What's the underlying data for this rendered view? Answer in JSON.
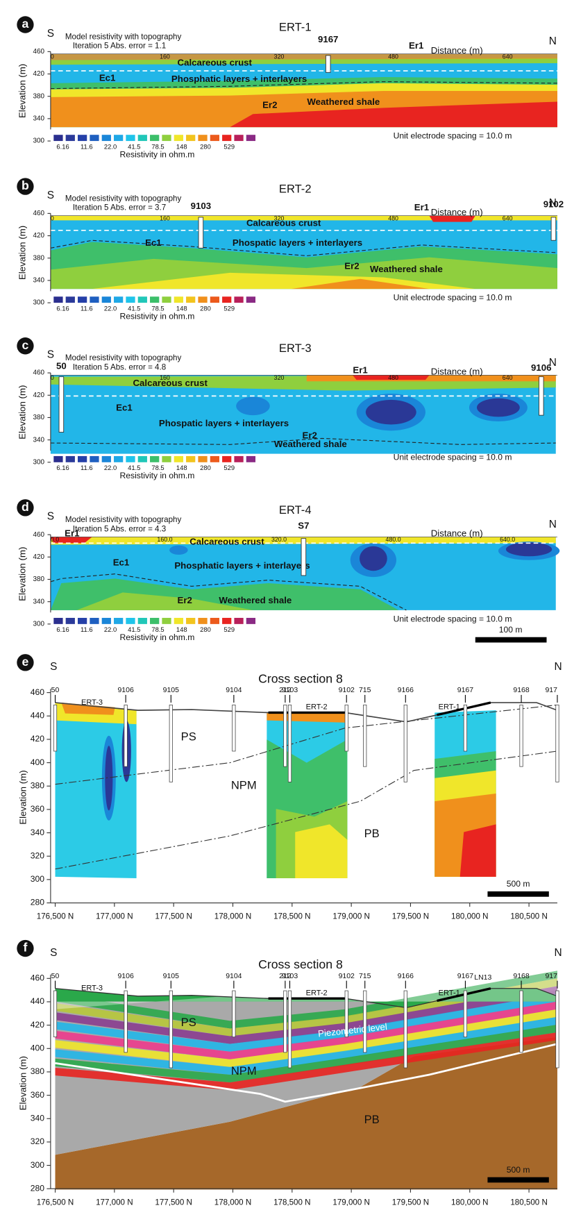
{
  "panels": [
    {
      "letter": "a",
      "title": "ERT-1",
      "header": "Model resistivity with topography",
      "iteration": "Iteration 5 Abs. error = 1.1",
      "left": "S",
      "right": "N",
      "distance_label": "Distance (m)",
      "distance_ticks": [
        "0",
        "160",
        "320",
        "480",
        "640"
      ],
      "y_label": "Elevation (m)",
      "y_ticks": [
        460,
        420,
        380,
        340,
        300
      ],
      "legend_values": [
        "6.16",
        "11.6",
        "22.0",
        "41.5",
        "78.5",
        "148",
        "280",
        "529"
      ],
      "legend_title": "Resistivity in ohm.m",
      "spacing": "Unit electrode spacing = 10.0 m",
      "labels": [
        "9167",
        "Er1",
        "Calcareous crust",
        "Ec1",
        "Phosphatic layers + interlayers",
        "Er2",
        "Weathered shale"
      ]
    },
    {
      "letter": "b",
      "title": "ERT-2",
      "header": "Model resistivity with topography",
      "iteration": "Iteration 5 Abs. error = 3.7",
      "left": "S",
      "right": "N",
      "distance_label": "Distance (m)",
      "distance_ticks": [
        "0",
        "160",
        "320",
        "480",
        "640"
      ],
      "y_label": "Elevation (m)",
      "y_ticks": [
        460,
        420,
        380,
        340,
        300
      ],
      "legend_values": [
        "6.16",
        "11.6",
        "22.0",
        "41.5",
        "78.5",
        "148",
        "280",
        "529"
      ],
      "legend_title": "Resistivity in ohm.m",
      "spacing": "Unit electrode spacing = 10.0 m",
      "labels": [
        "9103",
        "Er1",
        "9102",
        "Calcareous crust",
        "Ec1",
        "Phospatic layers + interlayers",
        "Er2",
        "Weathered shale"
      ]
    },
    {
      "letter": "c",
      "title": "ERT-3",
      "header": "Model resistivity with topography",
      "iteration": "Iteration 5 Abs. error = 4.8",
      "left": "S",
      "right": "N",
      "distance_label": "Distance (m)",
      "distance_ticks": [
        "0",
        "160",
        "320",
        "480",
        "640"
      ],
      "y_label": "Elevation (m)",
      "y_ticks": [
        460,
        420,
        380,
        340,
        300
      ],
      "legend_values": [
        "6.16",
        "11.6",
        "22.0",
        "41.5",
        "78.5",
        "148",
        "280",
        "529"
      ],
      "legend_title": "Resistivity in ohm.m",
      "spacing": "Unit electrode spacing = 10.0 m",
      "labels": [
        "50",
        "Er1",
        "9106",
        "Calcareous crust",
        "Ec1",
        "Phospatic layers + interlayers",
        "Er2",
        "Weathered shale"
      ]
    },
    {
      "letter": "d",
      "title": "ERT-4",
      "header": "Model resistivity with topography",
      "iteration": "Iteration 5 Abs. error = 4.3",
      "left": "S",
      "right": "N",
      "distance_label": "Distance (m)",
      "distance_ticks": [
        "0.0",
        "160.0",
        "320.0",
        "480.0",
        "640.0"
      ],
      "y_label": "Elevation (m)",
      "y_ticks": [
        460,
        420,
        380,
        340,
        300
      ],
      "legend_values": [
        "6.16",
        "11.6",
        "22.0",
        "41.5",
        "78.5",
        "148",
        "280",
        "529"
      ],
      "legend_title": "Resistivity in ohm.m",
      "spacing": "Unit electrode spacing = 10.0 m",
      "labels": [
        "Er1",
        "S7",
        "Calcareous crust",
        "Ec1",
        "Phosphatic layers + interlayers",
        "Er2",
        "Weathered shale"
      ],
      "scale_bar": "100 m"
    }
  ],
  "sections": [
    {
      "letter": "e",
      "title": "Cross section 8",
      "left": "S",
      "right": "N",
      "y_label": "Elevation (m)",
      "y_ticks": [
        460,
        440,
        420,
        400,
        380,
        360,
        340,
        320,
        300,
        280
      ],
      "x_ticks": [
        "176,500 N",
        "177,000 N",
        "177,500 N",
        "178,000 N",
        "178,500 N",
        "179,000 N",
        "179,500 N",
        "180,000 N",
        "180,500 N"
      ],
      "wells": [
        "50",
        "9106",
        "9105",
        "9104",
        "212",
        "9103",
        "9102",
        "715",
        "9166",
        "9167",
        "9168",
        "917"
      ],
      "ert_labels": [
        "ERT-3",
        "ERT-2",
        "ERT-1"
      ],
      "zones": [
        "PS",
        "NPM",
        "PB"
      ],
      "scale_bar": "500 m"
    },
    {
      "letter": "f",
      "title": "Cross section 8",
      "left": "S",
      "right": "N",
      "y_label": "Elevation (m)",
      "y_ticks": [
        460,
        440,
        420,
        400,
        380,
        360,
        340,
        320,
        300,
        280
      ],
      "x_ticks": [
        "176,500 N",
        "177,000 N",
        "177,500 N",
        "178,000 N",
        "178,500 N",
        "179,000 N",
        "179,500 N",
        "180,000 N",
        "180,500 N"
      ],
      "wells": [
        "50",
        "9106",
        "9105",
        "9104",
        "212",
        "9103",
        "9102",
        "715",
        "9166",
        "9167",
        "9168",
        "917"
      ],
      "ert_labels": [
        "ERT-3",
        "ERT-2",
        "ERT-1"
      ],
      "zones": [
        "PS",
        "NPM",
        "PB"
      ],
      "scale_bar": "500 m",
      "extra_labels": [
        "LN13",
        "Piezometric level"
      ]
    }
  ]
}
